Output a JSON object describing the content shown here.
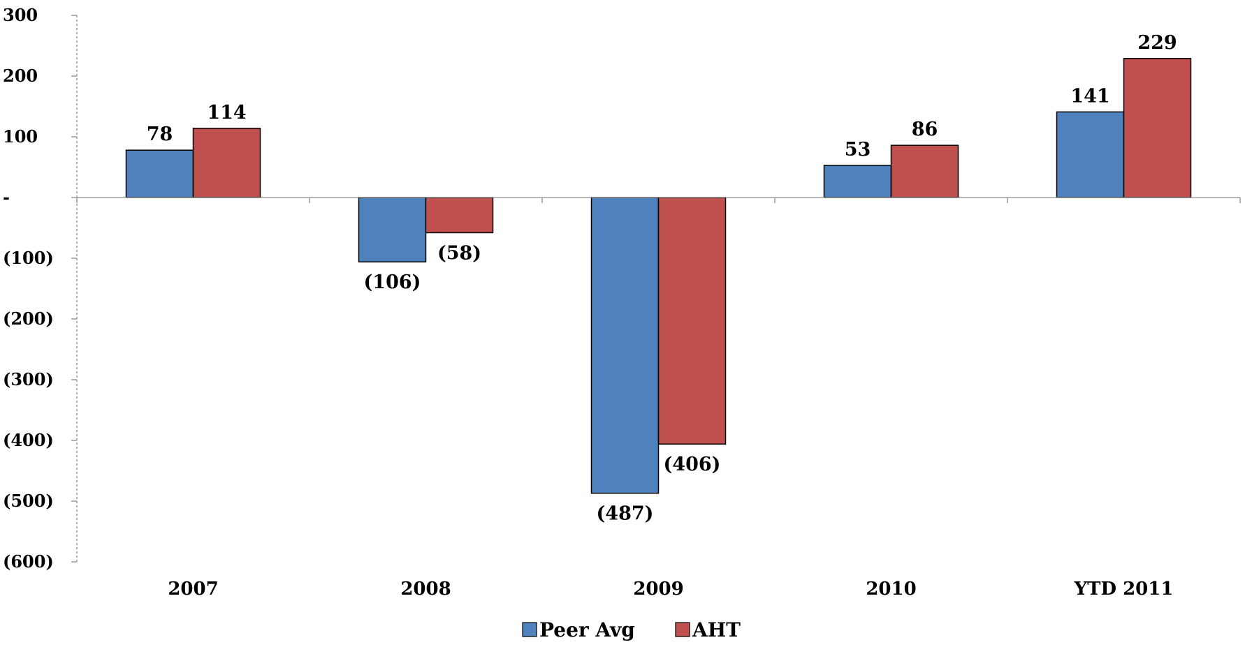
{
  "chart_data": {
    "type": "bar",
    "categories": [
      "2007",
      "2008",
      "2009",
      "2010",
      "YTD 2011"
    ],
    "series": [
      {
        "name": "Peer Avg",
        "color": "#4F81BD",
        "values": [
          78,
          -106,
          -487,
          53,
          141
        ],
        "labels": [
          "78",
          "(106)",
          "(487)",
          "53",
          "141"
        ]
      },
      {
        "name": "AHT",
        "color": "#C0504D",
        "values": [
          114,
          -58,
          -406,
          86,
          229
        ],
        "labels": [
          "114",
          "(58)",
          "(406)",
          "86",
          "229"
        ]
      }
    ],
    "ylim": [
      -600,
      300
    ],
    "yticks": [
      300,
      200,
      100,
      0,
      -100,
      -200,
      -300,
      -400,
      -500,
      -600
    ],
    "ytick_labels": [
      "300",
      "200",
      "100",
      "-",
      "(100)",
      "(200)",
      "(300)",
      "(400)",
      "(500)",
      "(600)"
    ],
    "grid": false,
    "legend_position": "bottom"
  }
}
